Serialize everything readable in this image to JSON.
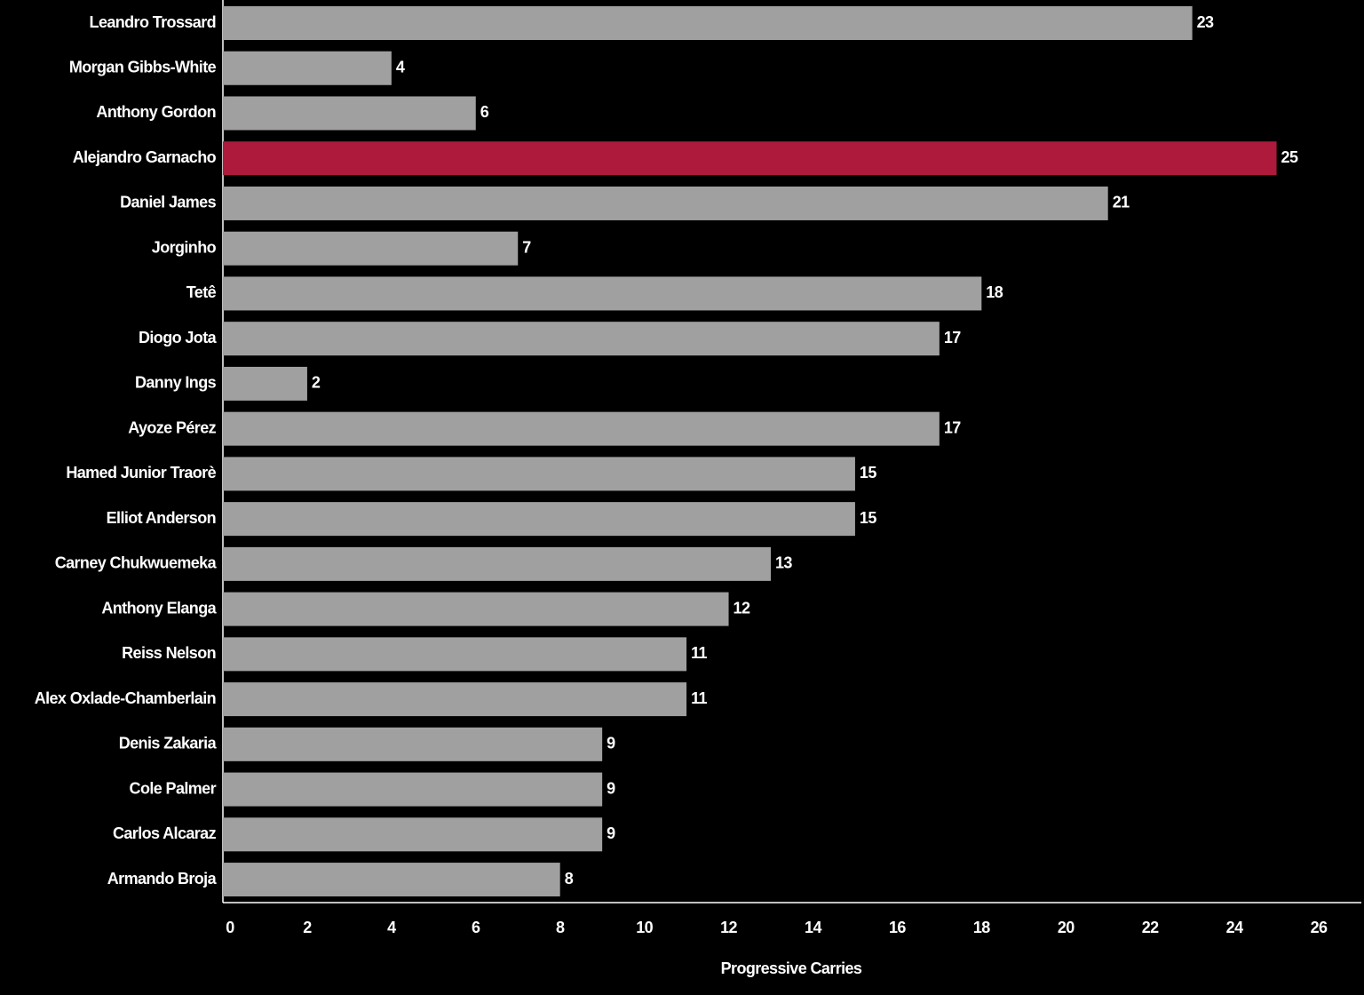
{
  "chart_data": {
    "type": "bar",
    "orientation": "horizontal",
    "x_label": "Progressive Carries",
    "categories": [
      "Leandro Trossard",
      "Morgan Gibbs-White",
      "Anthony Gordon",
      "Alejandro Garnacho",
      "Daniel James",
      "Jorginho",
      "Tetê",
      "Diogo Jota",
      "Danny Ings",
      "Ayoze Pérez",
      "Hamed Junior Traorè",
      "Elliot Anderson",
      "Carney Chukwuemeka",
      "Anthony Elanga",
      "Reiss Nelson",
      "Alex Oxlade-Chamberlain",
      "Denis Zakaria",
      "Cole Palmer",
      "Carlos Alcaraz",
      "Armando Broja"
    ],
    "values": [
      23,
      4,
      6,
      25,
      21,
      7,
      18,
      17,
      2,
      17,
      15,
      15,
      13,
      12,
      11,
      11,
      9,
      9,
      9,
      8
    ],
    "colors": [
      "#a0a0a0",
      "#a0a0a0",
      "#a0a0a0",
      "#ad1a3b",
      "#a0a0a0",
      "#a0a0a0",
      "#a0a0a0",
      "#a0a0a0",
      "#a0a0a0",
      "#a0a0a0",
      "#a0a0a0",
      "#a0a0a0",
      "#a0a0a0",
      "#a0a0a0",
      "#a0a0a0",
      "#a0a0a0",
      "#a0a0a0",
      "#a0a0a0",
      "#a0a0a0",
      "#a0a0a0"
    ],
    "xlim": [
      0,
      26
    ],
    "xticks": [
      0,
      2,
      4,
      6,
      8,
      10,
      12,
      14,
      16,
      18,
      20,
      22,
      24,
      26
    ],
    "grid": false
  }
}
